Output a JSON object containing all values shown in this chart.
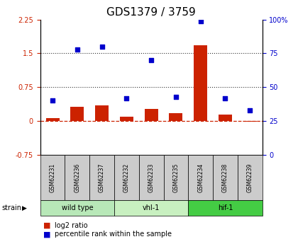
{
  "title": "GDS1379 / 3759",
  "samples": [
    "GSM62231",
    "GSM62236",
    "GSM62237",
    "GSM62232",
    "GSM62233",
    "GSM62235",
    "GSM62234",
    "GSM62238",
    "GSM62239"
  ],
  "log2_ratio": [
    0.07,
    0.32,
    0.35,
    0.1,
    0.27,
    0.18,
    1.68,
    0.14,
    -0.02
  ],
  "percentile_rank": [
    40,
    78,
    80,
    42,
    70,
    43,
    99,
    42,
    33
  ],
  "ylim_left": [
    -0.75,
    2.25
  ],
  "ylim_right": [
    0,
    100
  ],
  "yticks_left": [
    -0.75,
    0,
    0.75,
    1.5,
    2.25
  ],
  "ytick_labels_left": [
    "-0.75",
    "0",
    "0.75",
    "1.5",
    "2.25"
  ],
  "yticks_right": [
    0,
    25,
    50,
    75,
    100
  ],
  "ytick_labels_right": [
    "0",
    "25",
    "50",
    "75",
    "100%"
  ],
  "hlines": [
    0.75,
    1.5
  ],
  "groups": [
    {
      "label": "wild type",
      "start": 0,
      "end": 3,
      "color": "#b8e8b8"
    },
    {
      "label": "vhl-1",
      "start": 3,
      "end": 6,
      "color": "#c8f0c0"
    },
    {
      "label": "hif-1",
      "start": 6,
      "end": 9,
      "color": "#44cc44"
    }
  ],
  "bar_color": "#cc2200",
  "scatter_color": "#0000cc",
  "zero_line_color": "#cc2200",
  "hline_color": "#333333",
  "sample_box_color": "#cccccc",
  "legend_bar_label": "log2 ratio",
  "legend_scatter_label": "percentile rank within the sample",
  "strain_label": "strain",
  "title_fontsize": 11,
  "tick_fontsize": 7,
  "sample_fontsize": 5.5,
  "group_fontsize": 7,
  "legend_fontsize": 7
}
